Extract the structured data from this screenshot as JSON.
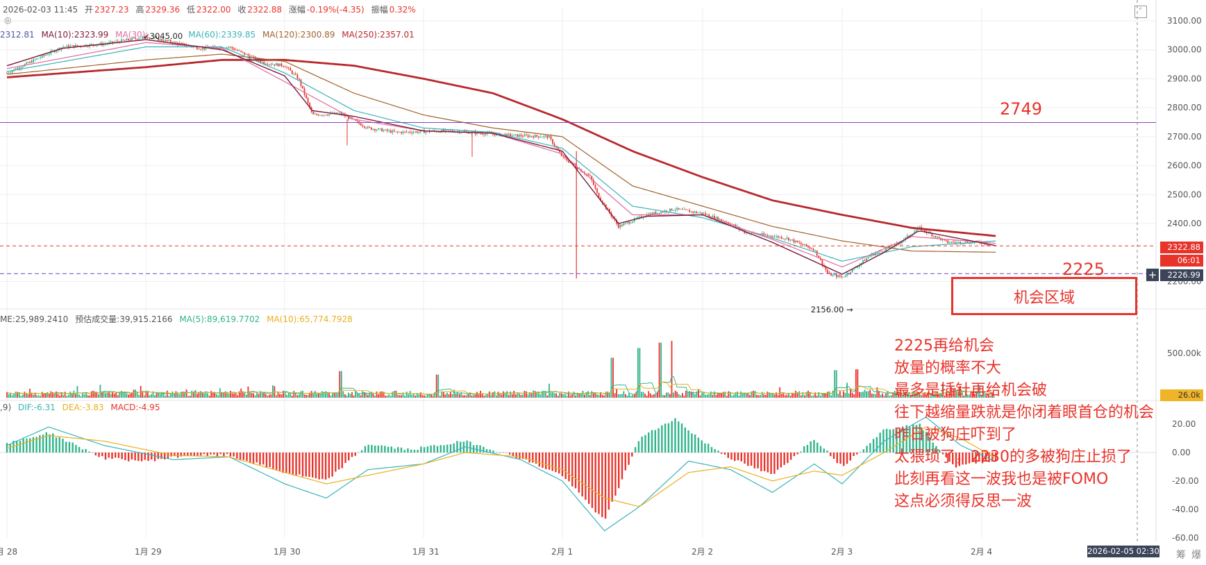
{
  "header": {
    "datetime": "2026-02-03 11:45",
    "open_label": "开",
    "open": "2327.23",
    "high_label": "高",
    "high": "2329.36",
    "low_label": "低",
    "low": "2322.00",
    "close_label": "收",
    "close": "2322.88",
    "change_label": "涨幅",
    "change": "-0.19%(-4.35)",
    "amplitude_label": "振幅",
    "amplitude": "0.32%"
  },
  "ma_legend": [
    {
      "label": "2312.81",
      "color": "#4a58a8"
    },
    {
      "label": "MA(10):2323.99",
      "color": "#7a1a3a"
    },
    {
      "label": "MA(30):",
      "color": "#e06aa0"
    },
    {
      "label": "MA(60):2339.85",
      "color": "#3ab3b8"
    },
    {
      "label": "MA(120):2300.89",
      "color": "#a0622a"
    },
    {
      "label": "MA(250):2357.01",
      "color": "#b8282c"
    }
  ],
  "volume_legend": [
    {
      "label": "ME:25,989.2410",
      "color": "#555555"
    },
    {
      "label": "预估成交量:39,915.2166",
      "color": "#555555"
    },
    {
      "label": "MA(5):89,619.7702",
      "color": "#2fb38a"
    },
    {
      "label": "MA(10):65,774.7928",
      "color": "#e8b01f"
    }
  ],
  "macd_legend": [
    {
      "label": ",9)",
      "color": "#555555"
    },
    {
      "label": "DIF:-6.31",
      "color": "#3ab3b8"
    },
    {
      "label": "DEA:-3.83",
      "color": "#e8b01f"
    },
    {
      "label": "MACD:-4.95",
      "color": "#e8332a"
    }
  ],
  "price_axis": [
    "3100.00",
    "3000.00",
    "2900.00",
    "2800.00",
    "2700.00",
    "2600.00",
    "2500.00",
    "2400.00",
    "2200.00"
  ],
  "volume_axis": [
    "500.00k"
  ],
  "macd_axis": [
    "20.00",
    "0.00",
    "-20.00",
    "-40.00",
    "-60.00"
  ],
  "x_axis": [
    "月 28",
    "1月 29",
    "1月 30",
    "1月 31",
    "2月 1",
    "2月 2",
    "2月 3",
    "2月 4"
  ],
  "tags": {
    "last_price": "2322.88",
    "countdown": "06:01",
    "cursor_price": "2226.99",
    "volume_value": "26.0k",
    "cursor_time": "2026-02-05 02:30"
  },
  "markers": {
    "high": "3045.00",
    "low": "2156.00"
  },
  "levels": {
    "upper": "2749",
    "lower": "2225"
  },
  "zone_label": "机会区域",
  "annotation_lines": [
    "2225再给机会",
    "放量的概率不大",
    "最多是插针再给机会破",
    "往下越缩量跌就是你闭着眼首仓的机会",
    "昨日被狗庄吓到了",
    "太猥琐了，2230的多被狗庄止损了",
    "此刻再看这一波我也是被FOMO",
    "这点必须得反思一波"
  ],
  "footer_tools": [
    "筹",
    "爆"
  ],
  "colors": {
    "up": "#2fb38a",
    "down": "#e8332a",
    "accent": "#e8332a",
    "grid": "#eeeeee"
  },
  "chart_data": {
    "type": "candlestick_with_indicators",
    "price_axis_range": [
      2150,
      3130
    ],
    "x_labels": [
      "1月 28",
      "1月 29",
      "1月 30",
      "1月 31",
      "2月 1",
      "2月 2",
      "2月 3",
      "2月 4"
    ],
    "price_path": [
      [
        0,
        2920
      ],
      [
        0.4,
        3010
      ],
      [
        0.7,
        3020
      ],
      [
        1.0,
        3045
      ],
      [
        1.4,
        3005
      ],
      [
        1.6,
        3010
      ],
      [
        1.85,
        2955
      ],
      [
        2.0,
        2945
      ],
      [
        2.1,
        2900
      ],
      [
        2.2,
        2775
      ],
      [
        2.4,
        2780
      ],
      [
        2.6,
        2730
      ],
      [
        2.8,
        2715
      ],
      [
        3.2,
        2720
      ],
      [
        3.6,
        2705
      ],
      [
        3.9,
        2700
      ],
      [
        4.0,
        2630
      ],
      [
        4.2,
        2560
      ],
      [
        4.25,
        2500
      ],
      [
        4.4,
        2390
      ],
      [
        4.6,
        2430
      ],
      [
        4.8,
        2450
      ],
      [
        5.0,
        2435
      ],
      [
        5.2,
        2400
      ],
      [
        5.3,
        2370
      ],
      [
        5.6,
        2350
      ],
      [
        5.8,
        2310
      ],
      [
        5.9,
        2225
      ],
      [
        6.0,
        2215
      ],
      [
        6.1,
        2250
      ],
      [
        6.2,
        2290
      ],
      [
        6.4,
        2330
      ],
      [
        6.55,
        2385
      ],
      [
        6.75,
        2335
      ],
      [
        7.0,
        2335
      ],
      [
        7.1,
        2322.88
      ]
    ],
    "ma250_path": [
      [
        0,
        2905
      ],
      [
        1.0,
        2940
      ],
      [
        1.55,
        2965
      ],
      [
        2.0,
        2965
      ],
      [
        2.5,
        2945
      ],
      [
        3.0,
        2900
      ],
      [
        3.5,
        2850
      ],
      [
        4.0,
        2760
      ],
      [
        4.5,
        2650
      ],
      [
        5.0,
        2560
      ],
      [
        5.5,
        2480
      ],
      [
        6.0,
        2430
      ],
      [
        6.5,
        2385
      ],
      [
        7.1,
        2357
      ]
    ],
    "ma120_path": [
      [
        0,
        2915
      ],
      [
        1.0,
        2965
      ],
      [
        1.55,
        2985
      ],
      [
        2.0,
        2960
      ],
      [
        2.5,
        2850
      ],
      [
        3.0,
        2775
      ],
      [
        3.5,
        2730
      ],
      [
        4.0,
        2700
      ],
      [
        4.5,
        2530
      ],
      [
        5.0,
        2460
      ],
      [
        5.5,
        2390
      ],
      [
        6.0,
        2340
      ],
      [
        6.5,
        2305
      ],
      [
        7.1,
        2301
      ]
    ],
    "ma60_path": [
      [
        0,
        2925
      ],
      [
        1.0,
        3010
      ],
      [
        1.55,
        3010
      ],
      [
        2.0,
        2920
      ],
      [
        2.5,
        2790
      ],
      [
        3.0,
        2730
      ],
      [
        3.5,
        2715
      ],
      [
        4.0,
        2660
      ],
      [
        4.5,
        2460
      ],
      [
        5.0,
        2420
      ],
      [
        5.5,
        2350
      ],
      [
        6.0,
        2270
      ],
      [
        6.5,
        2320
      ],
      [
        7.1,
        2340
      ]
    ],
    "ma30_path": [
      [
        0,
        2935
      ],
      [
        1.0,
        3025
      ],
      [
        1.55,
        3005
      ],
      [
        2.0,
        2890
      ],
      [
        2.5,
        2760
      ],
      [
        3.0,
        2720
      ],
      [
        3.5,
        2712
      ],
      [
        4.0,
        2640
      ],
      [
        4.5,
        2430
      ],
      [
        5.0,
        2430
      ],
      [
        5.5,
        2345
      ],
      [
        6.0,
        2250
      ],
      [
        6.5,
        2355
      ],
      [
        7.1,
        2332
      ]
    ],
    "ma10_path": [
      [
        0,
        2945
      ],
      [
        0.4,
        3005
      ],
      [
        1.0,
        3035
      ],
      [
        1.55,
        3000
      ],
      [
        2.0,
        2910
      ],
      [
        2.2,
        2790
      ],
      [
        2.5,
        2770
      ],
      [
        3.0,
        2720
      ],
      [
        3.5,
        2712
      ],
      [
        4.0,
        2650
      ],
      [
        4.4,
        2400
      ],
      [
        4.6,
        2425
      ],
      [
        5.0,
        2430
      ],
      [
        5.5,
        2335
      ],
      [
        6.0,
        2225
      ],
      [
        6.3,
        2300
      ],
      [
        6.55,
        2375
      ],
      [
        7.1,
        2324
      ]
    ],
    "levels": {
      "upper": 2749,
      "lower": 2225,
      "last": 2322.88
    },
    "volume_spikes_k": [
      [
        2.4,
        300
      ],
      [
        3.1,
        260
      ],
      [
        4.35,
        450
      ],
      [
        4.55,
        560
      ],
      [
        4.7,
        620
      ],
      [
        4.78,
        640
      ],
      [
        5.95,
        310
      ],
      [
        6.1,
        320
      ]
    ],
    "macd_range": [
      -62,
      30
    ],
    "dif_path": [
      [
        0,
        5
      ],
      [
        0.3,
        18
      ],
      [
        0.7,
        5
      ],
      [
        1.2,
        -5
      ],
      [
        1.6,
        -3
      ],
      [
        2.0,
        -22
      ],
      [
        2.3,
        -32
      ],
      [
        2.6,
        -12
      ],
      [
        3.0,
        -8
      ],
      [
        3.3,
        4
      ],
      [
        3.7,
        -5
      ],
      [
        4.0,
        -20
      ],
      [
        4.3,
        -55
      ],
      [
        4.55,
        -38
      ],
      [
        4.9,
        -6
      ],
      [
        5.2,
        -12
      ],
      [
        5.5,
        -28
      ],
      [
        5.8,
        -8
      ],
      [
        6.0,
        -22
      ],
      [
        6.3,
        8
      ],
      [
        6.6,
        25
      ],
      [
        6.85,
        5
      ],
      [
        7.1,
        -6.31
      ]
    ],
    "dea_path": [
      [
        0,
        3
      ],
      [
        0.3,
        12
      ],
      [
        0.7,
        8
      ],
      [
        1.2,
        -2
      ],
      [
        1.6,
        -3
      ],
      [
        2.0,
        -14
      ],
      [
        2.3,
        -22
      ],
      [
        2.6,
        -16
      ],
      [
        3.0,
        -8
      ],
      [
        3.3,
        0
      ],
      [
        3.7,
        -3
      ],
      [
        4.0,
        -12
      ],
      [
        4.3,
        -32
      ],
      [
        4.55,
        -38
      ],
      [
        4.9,
        -14
      ],
      [
        5.2,
        -10
      ],
      [
        5.5,
        -20
      ],
      [
        5.8,
        -13
      ],
      [
        6.0,
        -16
      ],
      [
        6.3,
        0
      ],
      [
        6.6,
        18
      ],
      [
        6.85,
        10
      ],
      [
        7.1,
        -3.83
      ]
    ],
    "macd_hist_path": [
      [
        0,
        6
      ],
      [
        0.3,
        14
      ],
      [
        0.7,
        -4
      ],
      [
        1.0,
        -6
      ],
      [
        1.3,
        -2
      ],
      [
        1.6,
        -2
      ],
      [
        2.0,
        -14
      ],
      [
        2.3,
        -20
      ],
      [
        2.6,
        6
      ],
      [
        2.9,
        2
      ],
      [
        3.3,
        8
      ],
      [
        3.7,
        -4
      ],
      [
        4.0,
        -16
      ],
      [
        4.3,
        -48
      ],
      [
        4.55,
        10
      ],
      [
        4.8,
        24
      ],
      [
        5.0,
        8
      ],
      [
        5.2,
        -4
      ],
      [
        5.5,
        -16
      ],
      [
        5.8,
        10
      ],
      [
        6.0,
        -10
      ],
      [
        6.3,
        16
      ],
      [
        6.55,
        20
      ],
      [
        6.8,
        -10
      ],
      [
        7.1,
        -4.95
      ]
    ]
  }
}
